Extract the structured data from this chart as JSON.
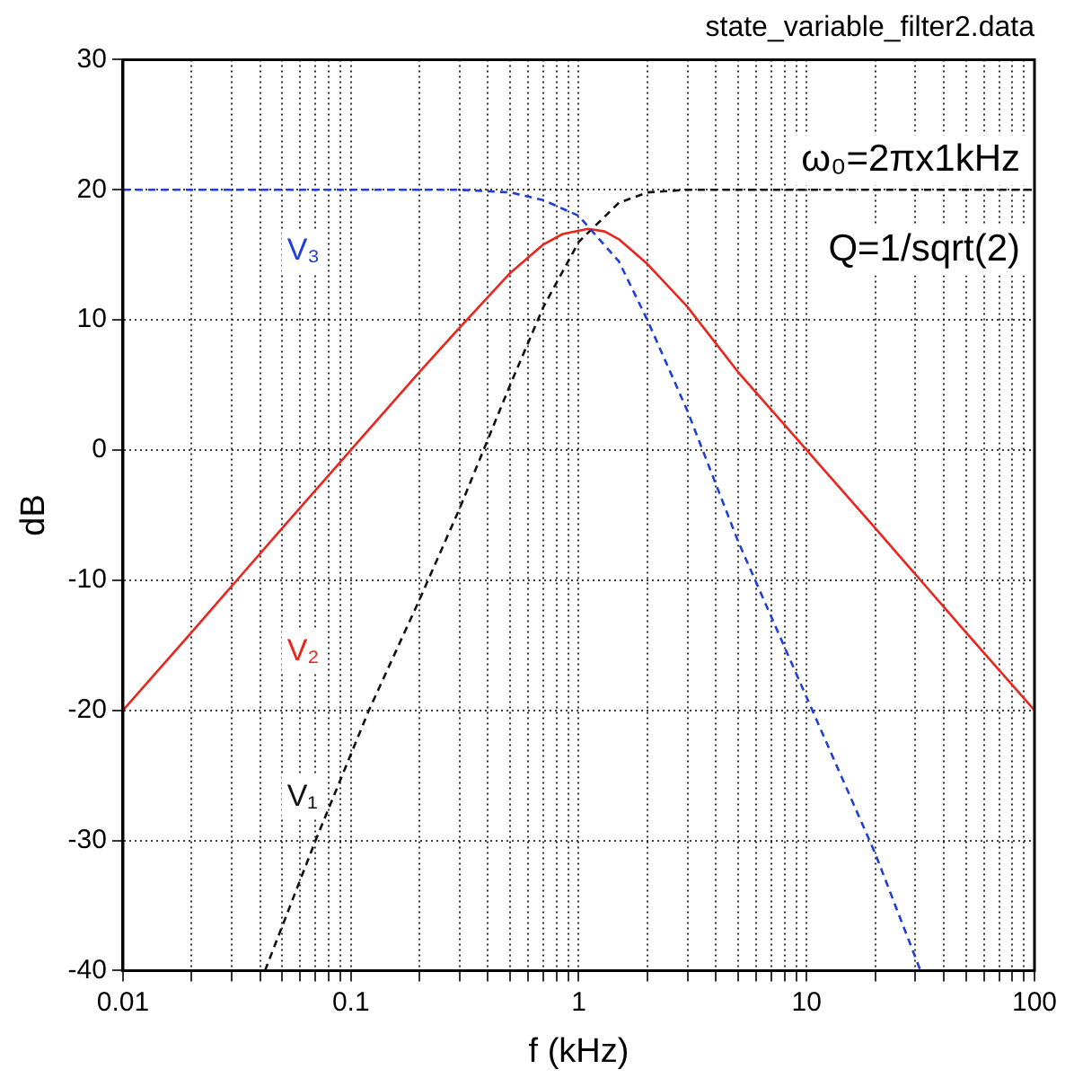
{
  "chart_data": {
    "type": "line",
    "title": "state_variable_filter2.data",
    "xlabel": "f (kHz)",
    "ylabel": "dB",
    "log": "x",
    "grid": true,
    "legend": false,
    "marker": "none",
    "xlim": [
      0.01,
      100
    ],
    "ylim": [
      -40,
      30
    ],
    "xticks": [
      0.01,
      {
        "value": 0.02,
        "label": null
      },
      {
        "value": 0.03,
        "label": null
      },
      {
        "value": 0.04,
        "label": null
      },
      {
        "value": 0.05,
        "label": null
      },
      {
        "value": 0.06,
        "label": null
      },
      {
        "value": 0.07,
        "label": null
      },
      {
        "value": 0.08,
        "label": null
      },
      {
        "value": 0.09,
        "label": null
      },
      0.1,
      {
        "value": 0.2,
        "label": null
      },
      {
        "value": 0.3,
        "label": null
      },
      {
        "value": 0.4,
        "label": null
      },
      {
        "value": 0.5,
        "label": null
      },
      {
        "value": 0.6,
        "label": null
      },
      {
        "value": 0.7,
        "label": null
      },
      {
        "value": 0.8,
        "label": null
      },
      {
        "value": 0.9,
        "label": null
      },
      1,
      {
        "value": 2,
        "label": null
      },
      {
        "value": 3,
        "label": null
      },
      {
        "value": 4,
        "label": null
      },
      {
        "value": 5,
        "label": null
      },
      {
        "value": 6,
        "label": null
      },
      {
        "value": 7,
        "label": null
      },
      {
        "value": 8,
        "label": null
      },
      {
        "value": 9,
        "label": null
      },
      10,
      {
        "value": 20,
        "label": null
      },
      {
        "value": 30,
        "label": null
      },
      {
        "value": 40,
        "label": null
      },
      {
        "value": 50,
        "label": null
      },
      {
        "value": 60,
        "label": null
      },
      {
        "value": 70,
        "label": null
      },
      {
        "value": 80,
        "label": null
      },
      {
        "value": 90,
        "label": null
      },
      100
    ],
    "yticks": [
      -40,
      -30,
      -20,
      -10,
      0,
      10,
      20,
      30
    ],
    "annotations": [
      "ω₀=2πx1kHz",
      "Q=1/sqrt(2)"
    ],
    "series": [
      {
        "name": "V₃",
        "color": "#1f3fd6",
        "line_style": "dashed",
        "x": [
          0.01,
          0.1,
          0.3,
          0.5,
          0.7,
          1,
          1.5,
          2,
          3,
          5,
          10,
          20,
          31.6
        ],
        "values": [
          20,
          20,
          20,
          19.8,
          19.2,
          18,
          14.5,
          10,
          3,
          -7,
          -19,
          -31,
          -40
        ]
      },
      {
        "name": "V₂",
        "color": "#e8261c",
        "line_style": "solid",
        "x": [
          0.01,
          0.02,
          0.05,
          0.1,
          0.2,
          0.3,
          0.5,
          0.7,
          0.85,
          1.1,
          1.3,
          1.5,
          2,
          3,
          5,
          10,
          20,
          50,
          100
        ],
        "values": [
          -20,
          -14,
          -6,
          0,
          6,
          9.4,
          13.6,
          15.8,
          16.6,
          17,
          16.8,
          16.2,
          14.3,
          11,
          6,
          0,
          -6,
          -14,
          -20
        ]
      },
      {
        "name": "V₁",
        "color": "#111111",
        "line_style": "dashed",
        "x": [
          0.042,
          0.07,
          0.12,
          0.2,
          0.3,
          0.5,
          0.7,
          1,
          1.5,
          2,
          3,
          10,
          100
        ],
        "values": [
          -40,
          -30,
          -20,
          -11.5,
          -4.5,
          5,
          11,
          16,
          19,
          19.8,
          20,
          20,
          20
        ]
      }
    ]
  }
}
